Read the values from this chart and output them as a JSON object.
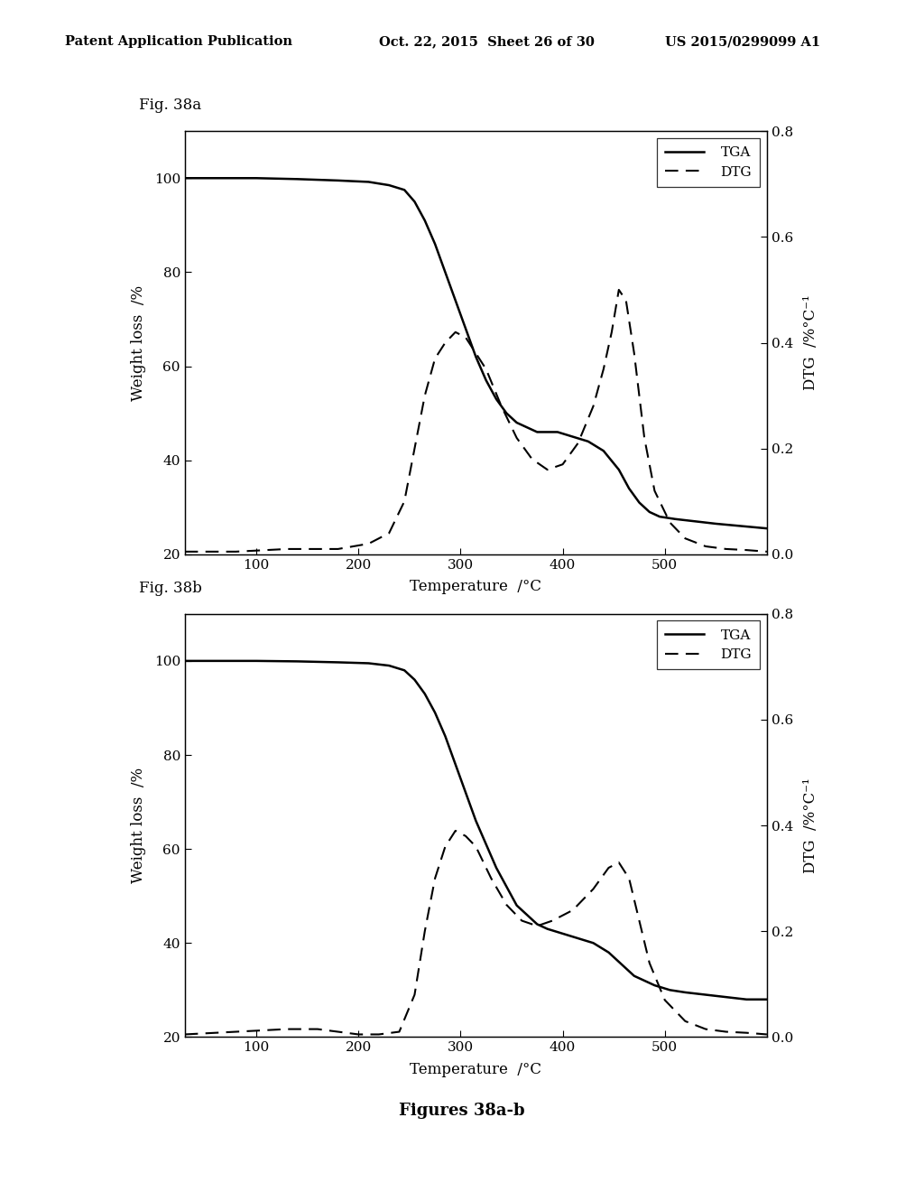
{
  "fig_title_a": "Fig. 38a",
  "fig_title_b": "Fig. 38b",
  "caption": "Figures 38a-b",
  "header_text": "Patent Application Publication",
  "header_date": "Oct. 22, 2015  Sheet 26 of 30",
  "header_patent": "US 2015/0299099 A1",
  "xlabel": "Temperature  /°C",
  "ylabel_left": "Weight loss  /%",
  "ylabel_right": "DTG  /%°C⁻¹",
  "xlim": [
    30,
    600
  ],
  "xticks": [
    100,
    200,
    300,
    400,
    500
  ],
  "ylim_left": [
    20,
    110
  ],
  "yticks_left": [
    20,
    40,
    60,
    80,
    100
  ],
  "ylim_right": [
    0.0,
    0.8
  ],
  "yticks_right": [
    0.0,
    0.2,
    0.4,
    0.6,
    0.8
  ],
  "legend_entries": [
    "TGA",
    "DTG"
  ],
  "tga_a_x": [
    30,
    60,
    100,
    140,
    180,
    210,
    230,
    245,
    255,
    265,
    275,
    285,
    295,
    305,
    315,
    325,
    335,
    345,
    355,
    365,
    375,
    385,
    395,
    410,
    425,
    440,
    455,
    465,
    475,
    485,
    495,
    510,
    530,
    550,
    575,
    600
  ],
  "tga_a_y": [
    100,
    100,
    100,
    99.8,
    99.5,
    99.2,
    98.5,
    97.5,
    95,
    91,
    86,
    80,
    74,
    68,
    62,
    57,
    53,
    50,
    48,
    47,
    46,
    46,
    46,
    45,
    44,
    42,
    38,
    34,
    31,
    29,
    28,
    27.5,
    27,
    26.5,
    26,
    25.5
  ],
  "dtg_a_x": [
    30,
    80,
    130,
    180,
    210,
    230,
    245,
    255,
    265,
    275,
    285,
    295,
    305,
    315,
    325,
    340,
    355,
    370,
    385,
    400,
    415,
    430,
    440,
    448,
    455,
    462,
    470,
    480,
    490,
    505,
    520,
    540,
    560,
    580,
    600
  ],
  "dtg_a_y": [
    0.005,
    0.005,
    0.01,
    0.01,
    0.02,
    0.04,
    0.1,
    0.2,
    0.3,
    0.37,
    0.4,
    0.42,
    0.41,
    0.38,
    0.35,
    0.28,
    0.22,
    0.18,
    0.16,
    0.17,
    0.21,
    0.28,
    0.35,
    0.42,
    0.5,
    0.48,
    0.38,
    0.22,
    0.12,
    0.06,
    0.03,
    0.015,
    0.01,
    0.008,
    0.005
  ],
  "tga_b_x": [
    30,
    60,
    100,
    140,
    180,
    210,
    230,
    245,
    255,
    265,
    275,
    285,
    295,
    305,
    315,
    325,
    335,
    345,
    355,
    365,
    375,
    385,
    400,
    415,
    430,
    445,
    460,
    470,
    480,
    490,
    505,
    520,
    540,
    560,
    580,
    600
  ],
  "tga_b_y": [
    100,
    100,
    100,
    99.9,
    99.7,
    99.5,
    99,
    98,
    96,
    93,
    89,
    84,
    78,
    72,
    66,
    61,
    56,
    52,
    48,
    46,
    44,
    43,
    42,
    41,
    40,
    38,
    35,
    33,
    32,
    31,
    30,
    29.5,
    29,
    28.5,
    28,
    28
  ],
  "dtg_b_x": [
    30,
    80,
    130,
    160,
    180,
    200,
    220,
    240,
    255,
    265,
    275,
    285,
    295,
    305,
    315,
    330,
    345,
    360,
    375,
    390,
    410,
    430,
    445,
    455,
    465,
    475,
    485,
    500,
    520,
    540,
    560,
    580,
    600
  ],
  "dtg_b_y": [
    0.005,
    0.01,
    0.015,
    0.015,
    0.01,
    0.005,
    0.005,
    0.01,
    0.08,
    0.2,
    0.3,
    0.36,
    0.39,
    0.38,
    0.36,
    0.3,
    0.25,
    0.22,
    0.21,
    0.22,
    0.24,
    0.28,
    0.32,
    0.33,
    0.3,
    0.22,
    0.14,
    0.07,
    0.03,
    0.015,
    0.01,
    0.008,
    0.005
  ],
  "background_color": "#ffffff",
  "line_color": "#000000"
}
